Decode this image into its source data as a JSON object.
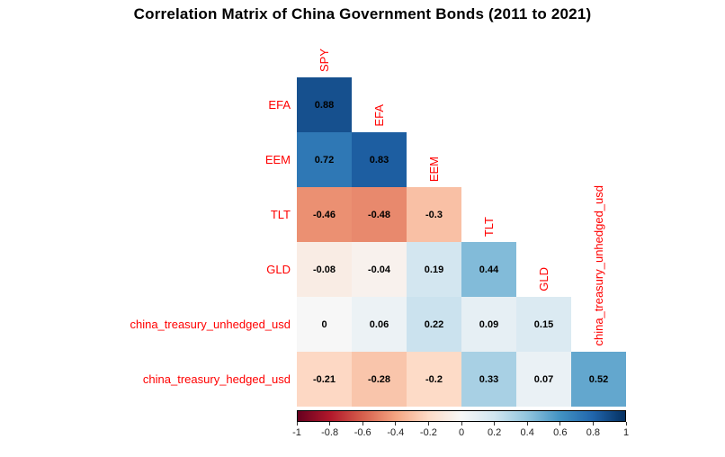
{
  "title": "Correlation Matrix of China Government Bonds (2011 to 2021)",
  "chart_data": {
    "type": "heatmap",
    "subtype": "correlation-matrix-lower-triangle",
    "title": "Correlation Matrix of China Government Bonds (2011 to 2021)",
    "variables": [
      "SPY",
      "EFA",
      "EEM",
      "TLT",
      "GLD",
      "china_treasury_unhedged_usd",
      "china_treasury_hedged_usd"
    ],
    "row_labels": [
      "EFA",
      "EEM",
      "TLT",
      "GLD",
      "china_treasury_unhedged_usd",
      "china_treasury_hedged_usd"
    ],
    "col_labels": [
      "SPY",
      "EFA",
      "EEM",
      "TLT",
      "GLD",
      "china_treasury_unhedged_usd"
    ],
    "matrix": [
      [
        0.88
      ],
      [
        0.72,
        0.83
      ],
      [
        -0.46,
        -0.48,
        -0.3
      ],
      [
        -0.08,
        -0.04,
        0.19,
        0.44
      ],
      [
        0,
        0.06,
        0.22,
        0.09,
        0.15
      ],
      [
        -0.21,
        -0.28,
        -0.2,
        0.33,
        0.07,
        0.52
      ]
    ],
    "value_range": [
      -1,
      1
    ],
    "colorbar": {
      "ticks": [
        "-1",
        "-0.8",
        "-0.6",
        "-0.4",
        "-0.2",
        "0",
        "0.2",
        "0.4",
        "0.6",
        "0.8",
        "1"
      ],
      "orientation": "horizontal",
      "position": "bottom"
    },
    "palette_rdbu": [
      "#67001F",
      "#B2182B",
      "#D6604D",
      "#F4A582",
      "#FDDBC7",
      "#F7F7F7",
      "#D1E5F0",
      "#92C5DE",
      "#4393C3",
      "#2166AC",
      "#053061"
    ],
    "label_color": "#FF0000",
    "value_text_color": "#000000",
    "background": "#FFFFFF",
    "grid": "off",
    "legend_position": "bottom"
  }
}
